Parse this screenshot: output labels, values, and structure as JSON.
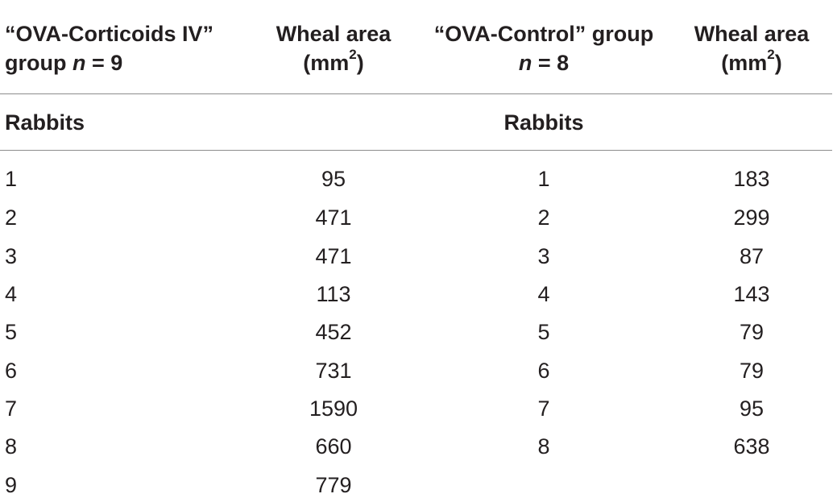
{
  "header": {
    "col1_line1": "“OVA-Corticoids IV”",
    "col1_line2_pre": "group ",
    "col1_line2_n": "n",
    "col1_line2_post": " = 9",
    "col2_line1": "Wheal area",
    "col2_line2_pre": "(mm",
    "col2_line2_sup": "2",
    "col2_line2_post": ")",
    "col3_line1": "“OVA-Control” group",
    "col3_line2_n": "n",
    "col3_line2_post": " = 8",
    "col4_line1": "Wheal area",
    "col4_line2_pre": "(mm",
    "col4_line2_sup": "2",
    "col4_line2_post": ")"
  },
  "subheader": {
    "left": "Rabbits",
    "right": "Rabbits"
  },
  "rows": [
    {
      "r1": "1",
      "w1": "95",
      "r2": "1",
      "w2": "183"
    },
    {
      "r1": "2",
      "w1": "471",
      "r2": "2",
      "w2": "299"
    },
    {
      "r1": "3",
      "w1": "471",
      "r2": "3",
      "w2": "87"
    },
    {
      "r1": "4",
      "w1": "113",
      "r2": "4",
      "w2": "143"
    },
    {
      "r1": "5",
      "w1": "452",
      "r2": "5",
      "w2": "79"
    },
    {
      "r1": "6",
      "w1": "731",
      "r2": "6",
      "w2": "79"
    },
    {
      "r1": "7",
      "w1": "1590",
      "r2": "7",
      "w2": "95"
    },
    {
      "r1": "8",
      "w1": "660",
      "r2": "8",
      "w2": "638"
    },
    {
      "r1": "9",
      "w1": "779",
      "r2": "",
      "w2": ""
    }
  ]
}
